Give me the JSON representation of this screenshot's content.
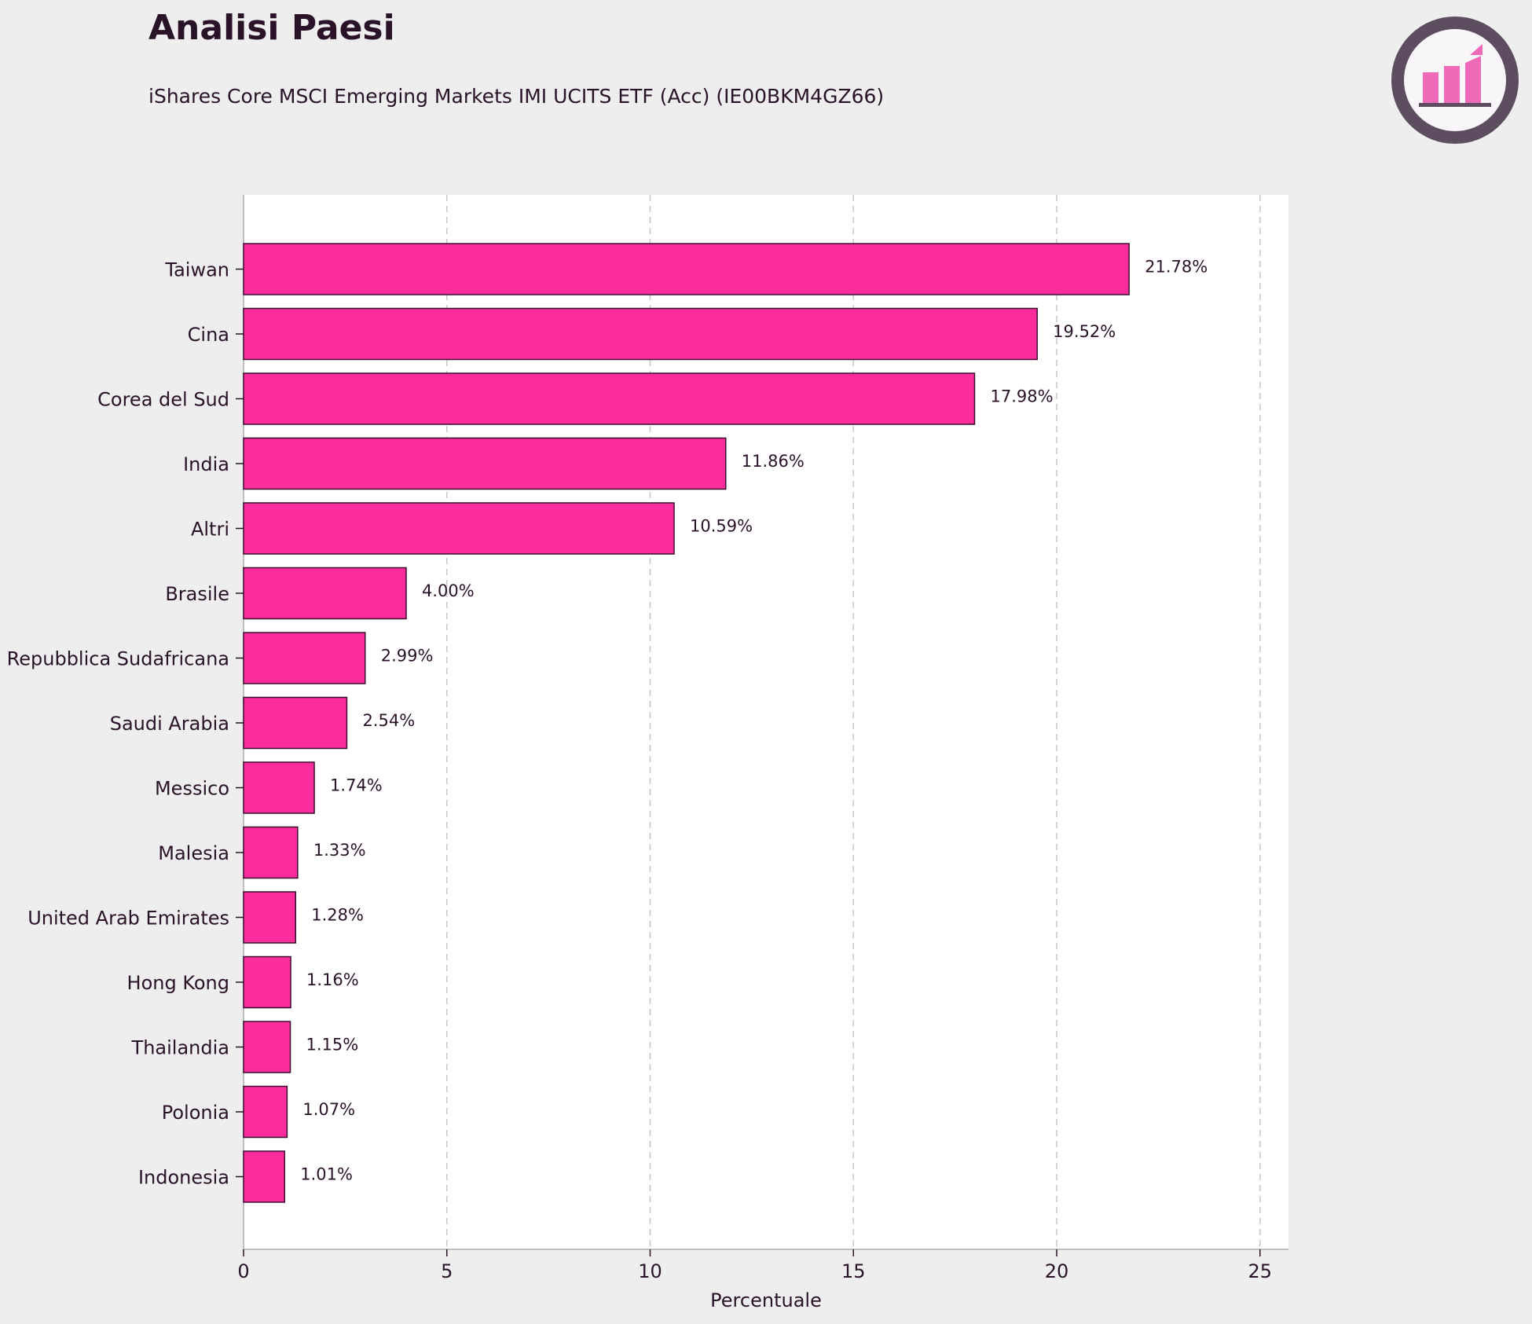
{
  "header": {
    "title": "Analisi Paesi",
    "subtitle": "iShares Core MSCI Emerging Markets IMI UCITS ETF (Acc) (IE00BKM4GZ66)"
  },
  "logo": {
    "icon": "bar-chart-logo-icon",
    "ring_color": "#5e4c60",
    "bar_color": "#f06aba"
  },
  "colors": {
    "bar_fill": "#fb2c9c",
    "bar_stroke": "#3a1030",
    "plot_bg": "#ffffff",
    "page_bg": "#eeeeee",
    "grid": "#c8c8c8",
    "text": "#2a1228"
  },
  "chart_data": {
    "type": "bar",
    "orientation": "horizontal",
    "categories": [
      "Taiwan",
      "Cina",
      "Corea del Sud",
      "India",
      "Altri",
      "Brasile",
      "Repubblica Sudafricana",
      "Saudi Arabia",
      "Messico",
      "Malesia",
      "United Arab Emirates",
      "Hong Kong",
      "Thailandia",
      "Polonia",
      "Indonesia"
    ],
    "values": [
      21.78,
      19.52,
      17.98,
      11.86,
      10.59,
      4.0,
      2.99,
      2.54,
      1.74,
      1.33,
      1.28,
      1.16,
      1.15,
      1.07,
      1.01
    ],
    "value_labels": [
      "21.78%",
      "19.52%",
      "17.98%",
      "11.86%",
      "10.59%",
      "4.00%",
      "2.99%",
      "2.54%",
      "1.74%",
      "1.33%",
      "1.28%",
      "1.16%",
      "1.15%",
      "1.07%",
      "1.01%"
    ],
    "xlabel": "Percentuale",
    "ylabel": "",
    "xlim": [
      0,
      25.7
    ],
    "xticks": [
      0,
      5,
      10,
      15,
      20,
      25
    ],
    "grid": "x-dashed",
    "legend": "none"
  }
}
